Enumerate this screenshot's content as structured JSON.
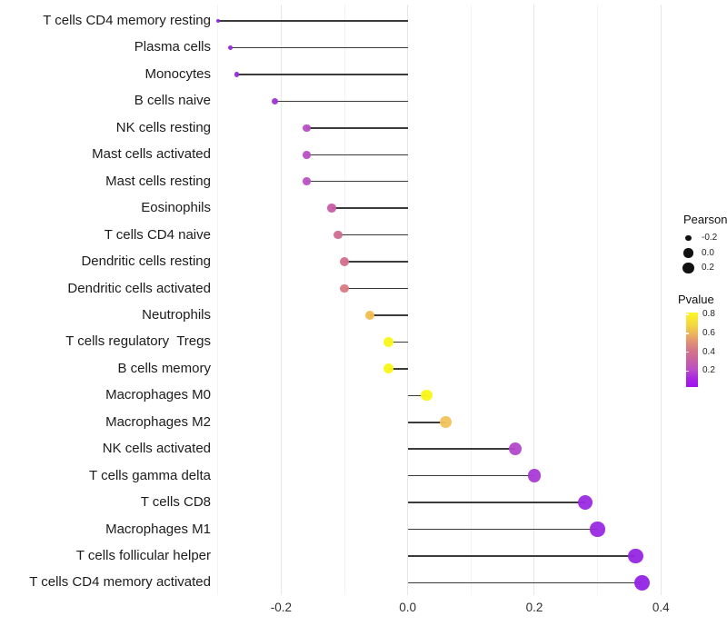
{
  "chart_data": {
    "type": "scatter",
    "variant": "lollipop",
    "title": "",
    "xlabel": "",
    "ylabel": "",
    "axis": {
      "xlim": [
        -0.304,
        0.414
      ],
      "ticks": [
        {
          "label": "-0.2",
          "value": -0.2
        },
        {
          "label": "0.0",
          "value": 0.0
        },
        {
          "label": "0.2",
          "value": 0.2
        },
        {
          "label": "0.4",
          "value": 0.4
        }
      ],
      "minor_ticks": [
        -0.3,
        -0.1,
        0.1,
        0.3
      ],
      "grid": "vertical-only"
    },
    "points": [
      {
        "label": "T cells CD4 memory resting",
        "pearson": -0.3,
        "pvalue": 0.04,
        "color": "#8F25E5"
      },
      {
        "label": "Plasma cells",
        "pearson": -0.28,
        "pvalue": 0.05,
        "color": "#9327E2"
      },
      {
        "label": "Monocytes",
        "pearson": -0.27,
        "pvalue": 0.06,
        "color": "#9629E0"
      },
      {
        "label": "B cells naive",
        "pearson": -0.21,
        "pvalue": 0.12,
        "color": "#A135D8"
      },
      {
        "label": "NK cells resting",
        "pearson": -0.16,
        "pvalue": 0.24,
        "color": "#BA4EC7"
      },
      {
        "label": "Mast cells activated",
        "pearson": -0.16,
        "pvalue": 0.24,
        "color": "#BA4EC7"
      },
      {
        "label": "Mast cells resting",
        "pearson": -0.16,
        "pvalue": 0.25,
        "color": "#BC50C5"
      },
      {
        "label": "Eosinophils",
        "pearson": -0.12,
        "pvalue": 0.34,
        "color": "#C85DA6"
      },
      {
        "label": "T cells CD4 naive",
        "pearson": -0.11,
        "pvalue": 0.4,
        "color": "#D16A94"
      },
      {
        "label": "Dendritic cells resting",
        "pearson": -0.1,
        "pvalue": 0.43,
        "color": "#D2708D"
      },
      {
        "label": "Dendritic cells activated",
        "pearson": -0.1,
        "pvalue": 0.46,
        "color": "#D87A83"
      },
      {
        "label": "Neutrophils",
        "pearson": -0.06,
        "pvalue": 0.64,
        "color": "#F0BE4F"
      },
      {
        "label": "T cells regulatory  Tregs",
        "pearson": -0.03,
        "pvalue": 0.8,
        "color": "#F8F718"
      },
      {
        "label": "B cells memory",
        "pearson": -0.03,
        "pvalue": 0.8,
        "color": "#F8F718"
      },
      {
        "label": "Macrophages M0",
        "pearson": 0.03,
        "pvalue": 0.81,
        "color": "#F9F716"
      },
      {
        "label": "Macrophages M2",
        "pearson": 0.06,
        "pvalue": 0.62,
        "color": "#F1C45B"
      },
      {
        "label": "NK cells activated",
        "pearson": 0.17,
        "pvalue": 0.21,
        "color": "#B448CB"
      },
      {
        "label": "T cells gamma delta",
        "pearson": 0.2,
        "pvalue": 0.16,
        "color": "#A93AD6"
      },
      {
        "label": "T cells CD8",
        "pearson": 0.28,
        "pvalue": 0.06,
        "color": "#9B2BE1"
      },
      {
        "label": "Macrophages M1",
        "pearson": 0.3,
        "pvalue": 0.05,
        "color": "#9929E2"
      },
      {
        "label": "T cells follicular helper",
        "pearson": 0.36,
        "pvalue": 0.03,
        "color": "#9626E4"
      },
      {
        "label": "T cells CD4 memory activated",
        "pearson": 0.37,
        "pvalue": 0.02,
        "color": "#9423E6"
      }
    ],
    "legend": {
      "pearson": {
        "title": "Pearson",
        "dot_color": "#111111",
        "items": [
          {
            "label": "-0.2",
            "value": -0.2
          },
          {
            "label": "0.0",
            "value": 0.0
          },
          {
            "label": "0.2",
            "value": 0.2
          }
        ]
      },
      "pvalue": {
        "title": "Pvalue",
        "bar_domain": [
          0.03,
          0.82
        ],
        "ticks": [
          {
            "label": "0.8",
            "value": 0.8
          },
          {
            "label": "0.6",
            "value": 0.6
          },
          {
            "label": "0.4",
            "value": 0.4
          },
          {
            "label": "0.2",
            "value": 0.2
          }
        ],
        "gradient": [
          {
            "at": 0.0,
            "color": "#9F13F2"
          },
          {
            "at": 0.12,
            "color": "#A827E0"
          },
          {
            "at": 0.24,
            "color": "#BC50C6"
          },
          {
            "at": 0.36,
            "color": "#C960A2"
          },
          {
            "at": 0.48,
            "color": "#D4738B"
          },
          {
            "at": 0.6,
            "color": "#E08F75"
          },
          {
            "at": 0.72,
            "color": "#EDB65A"
          },
          {
            "at": 0.84,
            "color": "#F5D83E"
          },
          {
            "at": 1.0,
            "color": "#FBF725"
          }
        ]
      }
    },
    "colors": {
      "segment": "#3B3B3B",
      "grid_major": "#E7E7E7",
      "grid_minor": "#F3F3F3",
      "background": "#FFFFFF",
      "axis_text": "#303030",
      "label_text": "#1C1C1C"
    }
  }
}
